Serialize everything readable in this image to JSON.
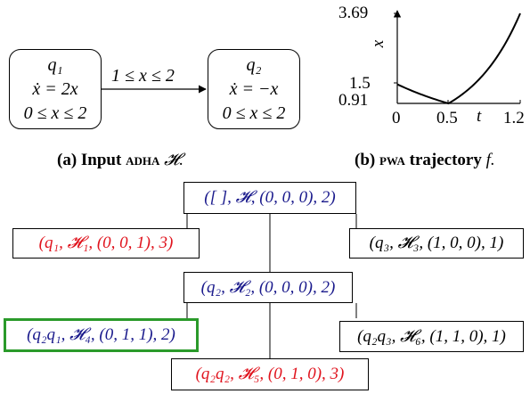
{
  "automaton": {
    "state1": {
      "name": "q₁",
      "flow": "ẋ = 2x",
      "invariant": "0 ≤ x ≤ 2"
    },
    "state2": {
      "name": "q₂",
      "flow": "ẋ = −x",
      "invariant": "0 ≤ x ≤ 2"
    },
    "transition_guard": "1 ≤ x ≤ 2",
    "caption_label": "(a) Input ",
    "caption_term": "ADHA",
    "caption_symbol": " 𝓗."
  },
  "trajectory_plot": {
    "y_axis_label": "x",
    "x_axis_label": "t",
    "y_ticks": [
      "3.69",
      "1.5",
      "0.91"
    ],
    "x_ticks": [
      "0",
      "0.5",
      "1.2"
    ],
    "caption_label": "(b) ",
    "caption_term": "PWA",
    "caption_text": " trajectory ",
    "caption_symbol": "f."
  },
  "chart_data": {
    "type": "line",
    "x": [
      0,
      0.5,
      1.2
    ],
    "y": [
      1.5,
      0.91,
      3.69
    ],
    "xlabel": "t",
    "ylabel": "x",
    "xlim": [
      0,
      1.2
    ],
    "ylim": [
      0.91,
      3.69
    ],
    "series": [
      {
        "x": [
          0,
          0.5
        ],
        "y": [
          1.5,
          0.91
        ]
      },
      {
        "x": [
          0.5,
          1.2
        ],
        "y": [
          0.91,
          3.69
        ]
      }
    ]
  },
  "tree": {
    "root": "([ ], 𝓗, (0, 0, 0), 2)",
    "left1": "(q₁, 𝓗₁, (0, 0, 1), 3)",
    "right1": "(q₃, 𝓗₃, (1, 0, 0), 1)",
    "mid1": "(q₂, 𝓗₂, (0, 0, 0), 2)",
    "left2": "(q₂q₁, 𝓗₄, (0, 1, 1), 2)",
    "right2": "(q₂q₃, 𝓗₆, (1, 1, 0), 1)",
    "bottom": "(q₂q₂, 𝓗₅, (0, 1, 0), 3)"
  },
  "colors": {
    "blue": "#1a1a8c",
    "red": "#e0141e",
    "black": "#000000",
    "highlight": "#2a9a2a"
  }
}
